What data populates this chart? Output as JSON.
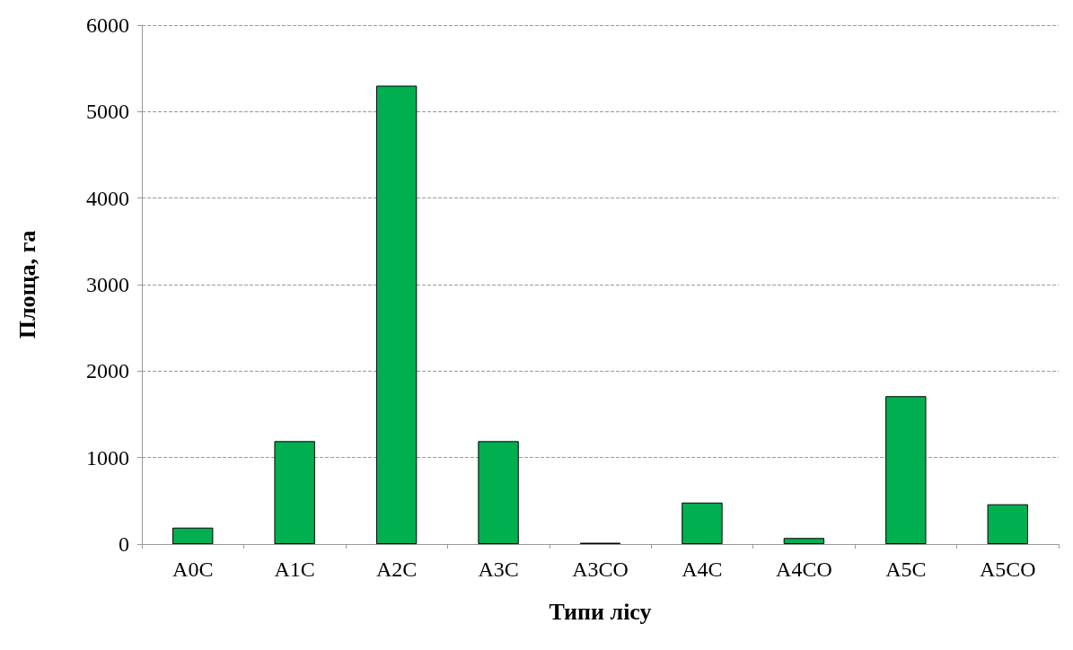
{
  "chart_data": {
    "type": "bar",
    "xlabel": "Типи лісу",
    "ylabel": "Площа, га",
    "categories": [
      "A0C",
      "A1C",
      "A2C",
      "A3C",
      "A3CO",
      "A4C",
      "A4CO",
      "A5C",
      "A5CO"
    ],
    "values": [
      190,
      1190,
      5300,
      1190,
      15,
      480,
      70,
      1710,
      460
    ],
    "color": "#00b050",
    "ylim": [
      0,
      6000
    ],
    "yticks": [
      0,
      1000,
      2000,
      3000,
      4000,
      5000,
      6000
    ],
    "grid": "y"
  }
}
